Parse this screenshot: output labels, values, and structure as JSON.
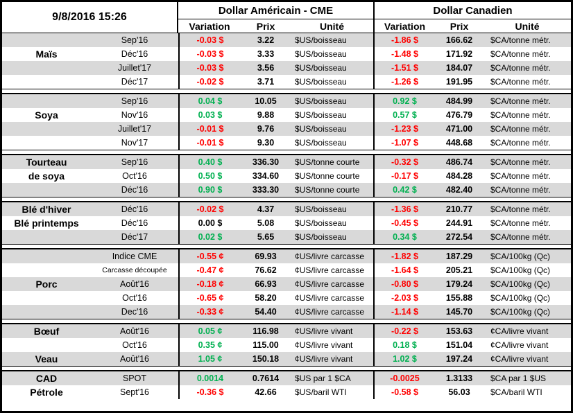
{
  "report": {
    "timestamp": "9/8/2016 15:26"
  },
  "header": {
    "usd_title": "Dollar Américain - CME",
    "cad_title": "Dollar Canadien",
    "col_variation": "Variation",
    "col_prix": "Prix",
    "col_unite": "Unité"
  },
  "colors": {
    "positive": "#00B050",
    "negative": "#FF0000",
    "neutral": "#000000",
    "row_stripe": "#D9D9D9",
    "border": "#000000"
  },
  "sections": [
    {
      "rows": [
        {
          "month": "Sep'16",
          "usd_variation": "-0.03 $",
          "usd_tone": "down",
          "usd_price": "3.22",
          "usd_unit": "$US/boisseau",
          "cad_variation": "-1.86 $",
          "cad_tone": "down",
          "cad_price": "166.62",
          "cad_unit": "$CA/tonne métr."
        },
        {
          "category": "Maïs",
          "month": "Déc'16",
          "usd_variation": "-0.03 $",
          "usd_tone": "down",
          "usd_price": "3.33",
          "usd_unit": "$US/boisseau",
          "cad_variation": "-1.48 $",
          "cad_tone": "down",
          "cad_price": "171.92",
          "cad_unit": "$CA/tonne métr."
        },
        {
          "month": "Juillet'17",
          "usd_variation": "-0.03 $",
          "usd_tone": "down",
          "usd_price": "3.56",
          "usd_unit": "$US/boisseau",
          "cad_variation": "-1.51 $",
          "cad_tone": "down",
          "cad_price": "184.07",
          "cad_unit": "$CA/tonne métr."
        },
        {
          "month": "Déc'17",
          "usd_variation": "-0.02 $",
          "usd_tone": "down",
          "usd_price": "3.71",
          "usd_unit": "$US/boisseau",
          "cad_variation": "-1.26 $",
          "cad_tone": "down",
          "cad_price": "191.95",
          "cad_unit": "$CA/tonne métr."
        }
      ]
    },
    {
      "rows": [
        {
          "month": "Sep'16",
          "usd_variation": "0.04 $",
          "usd_tone": "up",
          "usd_price": "10.05",
          "usd_unit": "$US/boisseau",
          "cad_variation": "0.92 $",
          "cad_tone": "up",
          "cad_price": "484.99",
          "cad_unit": "$CA/tonne métr."
        },
        {
          "category": "Soya",
          "month": "Nov'16",
          "usd_variation": "0.03 $",
          "usd_tone": "up",
          "usd_price": "9.88",
          "usd_unit": "$US/boisseau",
          "cad_variation": "0.57 $",
          "cad_tone": "up",
          "cad_price": "476.79",
          "cad_unit": "$CA/tonne métr."
        },
        {
          "month": "Juillet'17",
          "usd_variation": "-0.01 $",
          "usd_tone": "down",
          "usd_price": "9.76",
          "usd_unit": "$US/boisseau",
          "cad_variation": "-1.23 $",
          "cad_tone": "down",
          "cad_price": "471.00",
          "cad_unit": "$CA/tonne métr."
        },
        {
          "month": "Nov'17",
          "usd_variation": "-0.01 $",
          "usd_tone": "down",
          "usd_price": "9.30",
          "usd_unit": "$US/boisseau",
          "cad_variation": "-1.07 $",
          "cad_tone": "down",
          "cad_price": "448.68",
          "cad_unit": "$CA/tonne métr."
        }
      ]
    },
    {
      "rows": [
        {
          "category": "Tourteau",
          "month": "Sep'16",
          "usd_variation": "0.40 $",
          "usd_tone": "up",
          "usd_price": "336.30",
          "usd_unit": "$US/tonne courte",
          "cad_variation": "-0.32 $",
          "cad_tone": "down",
          "cad_price": "486.74",
          "cad_unit": "$CA/tonne métr."
        },
        {
          "category": "de soya",
          "month": "Oct'16",
          "usd_variation": "0.50 $",
          "usd_tone": "up",
          "usd_price": "334.60",
          "usd_unit": "$US/tonne courte",
          "cad_variation": "-0.17 $",
          "cad_tone": "down",
          "cad_price": "484.28",
          "cad_unit": "$CA/tonne métr."
        },
        {
          "month": "Déc'16",
          "usd_variation": "0.90 $",
          "usd_tone": "up",
          "usd_price": "333.30",
          "usd_unit": "$US/tonne courte",
          "cad_variation": "0.42 $",
          "cad_tone": "up",
          "cad_price": "482.40",
          "cad_unit": "$CA/tonne métr."
        }
      ]
    },
    {
      "rows": [
        {
          "category": "Blé d'hiver",
          "month": "Déc'16",
          "usd_variation": "-0.02 $",
          "usd_tone": "down",
          "usd_price": "4.37",
          "usd_unit": "$US/boisseau",
          "cad_variation": "-1.36 $",
          "cad_tone": "down",
          "cad_price": "210.77",
          "cad_unit": "$CA/tonne métr."
        },
        {
          "category": "Blé printemps",
          "month": "Déc'16",
          "usd_variation": "0.00 $",
          "usd_tone": "flat",
          "usd_price": "5.08",
          "usd_unit": "$US/boisseau",
          "cad_variation": "-0.45 $",
          "cad_tone": "down",
          "cad_price": "244.91",
          "cad_unit": "$CA/tonne métr."
        },
        {
          "month": "Déc'17",
          "usd_variation": "0.02 $",
          "usd_tone": "up",
          "usd_price": "5.65",
          "usd_unit": "$US/boisseau",
          "cad_variation": "0.34 $",
          "cad_tone": "up",
          "cad_price": "272.54",
          "cad_unit": "$CA/tonne métr."
        }
      ]
    },
    {
      "rows": [
        {
          "month": "Indice CME",
          "usd_variation": "-0.55 ¢",
          "usd_tone": "down",
          "usd_price": "69.93",
          "usd_unit": "¢US/livre carcasse",
          "cad_variation": "-1.82 $",
          "cad_tone": "down",
          "cad_price": "187.29",
          "cad_unit": "$CA/100kg (Qc)"
        },
        {
          "month": "Carcasse découpée",
          "month_small": true,
          "usd_variation": "-0.47 ¢",
          "usd_tone": "down",
          "usd_price": "76.62",
          "usd_unit": "¢US/livre carcasse",
          "cad_variation": "-1.64 $",
          "cad_tone": "down",
          "cad_price": "205.21",
          "cad_unit": "$CA/100kg (Qc)"
        },
        {
          "category": "Porc",
          "month": "Août'16",
          "usd_variation": "-0.18 ¢",
          "usd_tone": "down",
          "usd_price": "66.93",
          "usd_unit": "¢US/livre carcasse",
          "cad_variation": "-0.80 $",
          "cad_tone": "down",
          "cad_price": "179.24",
          "cad_unit": "$CA/100kg (Qc)"
        },
        {
          "month": "Oct'16",
          "usd_variation": "-0.65 ¢",
          "usd_tone": "down",
          "usd_price": "58.20",
          "usd_unit": "¢US/livre carcasse",
          "cad_variation": "-2.03 $",
          "cad_tone": "down",
          "cad_price": "155.88",
          "cad_unit": "$CA/100kg (Qc)"
        },
        {
          "month": "Dec'16",
          "usd_variation": "-0.33 ¢",
          "usd_tone": "down",
          "usd_price": "54.40",
          "usd_unit": "¢US/livre carcasse",
          "cad_variation": "-1.14 $",
          "cad_tone": "down",
          "cad_price": "145.70",
          "cad_unit": "$CA/100kg (Qc)"
        }
      ]
    },
    {
      "rows": [
        {
          "category": "Bœuf",
          "month": "Août'16",
          "usd_variation": "0.05 ¢",
          "usd_tone": "up",
          "usd_price": "116.98",
          "usd_unit": "¢US/livre vivant",
          "cad_variation": "-0.22 $",
          "cad_tone": "down",
          "cad_price": "153.63",
          "cad_unit": "¢CA/livre vivant"
        },
        {
          "month": "Oct'16",
          "usd_variation": "0.35 ¢",
          "usd_tone": "up",
          "usd_price": "115.00",
          "usd_unit": "¢US/livre vivant",
          "cad_variation": "0.18 $",
          "cad_tone": "up",
          "cad_price": "151.04",
          "cad_unit": "¢CA/livre vivant"
        },
        {
          "category": "Veau",
          "month": "Août'16",
          "usd_variation": "1.05 ¢",
          "usd_tone": "up",
          "usd_price": "150.18",
          "usd_unit": "¢US/livre vivant",
          "cad_variation": "1.02 $",
          "cad_tone": "up",
          "cad_price": "197.24",
          "cad_unit": "¢CA/livre vivant"
        }
      ]
    },
    {
      "rows": [
        {
          "category": "CAD",
          "month": "SPOT",
          "usd_variation": "0.0014",
          "usd_tone": "up",
          "usd_price": "0.7614",
          "usd_unit": "$US par 1 $CA",
          "cad_variation": "-0.0025",
          "cad_tone": "down",
          "cad_price": "1.3133",
          "cad_unit": "$CA par 1 $US"
        },
        {
          "category": "Pétrole",
          "month": "Sept'16",
          "usd_variation": "-0.36 $",
          "usd_tone": "down",
          "usd_price": "42.66",
          "usd_unit": "$US/baril WTI",
          "cad_variation": "-0.58 $",
          "cad_tone": "down",
          "cad_price": "56.03",
          "cad_unit": "$CA/baril WTI"
        }
      ]
    }
  ]
}
